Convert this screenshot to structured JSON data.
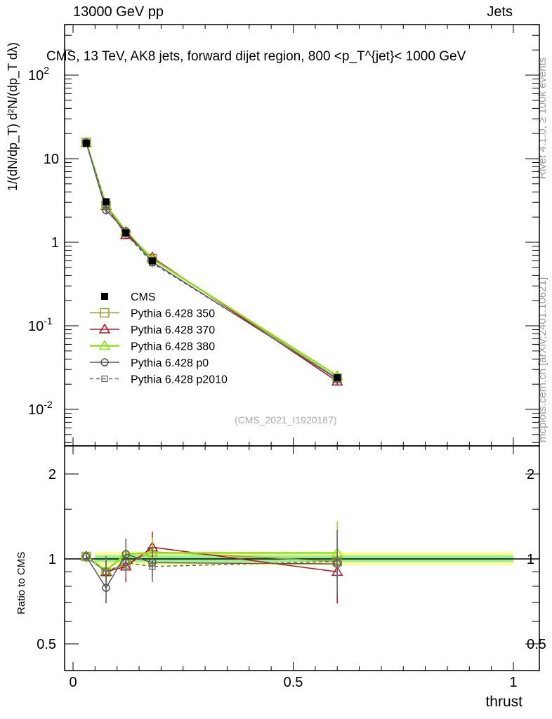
{
  "header": {
    "left": "13000 GeV pp",
    "right": "Jets"
  },
  "side_labels": {
    "rivet": "Rivet 4.1.0, ≥ 100k events",
    "mcplots": "mcplots.cern.ch [arXiv:2401.10621]"
  },
  "chart_data": {
    "type": "line",
    "title": "CMS, 13 TeV, AK8 jets, forward dijet region, 800 <p_T^{jet}< 1000 GeV",
    "watermark": "(CMS_2021_I1920187)",
    "xlabel": "thrust",
    "ylabel": "1/(dN/dp_T) d²N/(dp_T dλ)",
    "ratio_ylabel": "Ratio to CMS",
    "xlim": [
      -0.02,
      1.05
    ],
    "ylim": [
      0.004,
      400
    ],
    "ratio_ylim": [
      0.4,
      2.4
    ],
    "x_ticks": [
      "0",
      "0.5",
      "1"
    ],
    "y_ticks": [
      "10^-2",
      "10^-1",
      "1",
      "10",
      "10^2"
    ],
    "ratio_ticks": [
      "0.5",
      "1",
      "2"
    ],
    "x": [
      0.03,
      0.075,
      0.12,
      0.18,
      0.6
    ],
    "cms": [
      15.3,
      3.05,
      1.3,
      0.6,
      0.024
    ],
    "legend_position": "middle-left",
    "series": [
      {
        "name": "Pythia 6.428 350",
        "color": "#9b9b2d",
        "marker": "square",
        "dash": false,
        "ratio": [
          1.02,
          0.9,
          0.96,
          1.06,
          0.98
        ]
      },
      {
        "name": "Pythia 6.428 370",
        "color": "#b0122a",
        "marker": "triangle",
        "dash": false,
        "ratio": [
          1.02,
          0.9,
          0.94,
          1.1,
          0.9
        ]
      },
      {
        "name": "Pythia 6.428 380",
        "color": "#8fe01a",
        "marker": "triangle",
        "dash": false,
        "ratio": [
          1.02,
          0.91,
          1.04,
          1.05,
          1.05
        ]
      },
      {
        "name": "Pythia 6.428 p0",
        "color": "#555555",
        "marker": "circle",
        "dash": false,
        "ratio": [
          1.02,
          0.79,
          1.04,
          0.97,
          0.96
        ]
      },
      {
        "name": "Pythia 6.428 p2010",
        "color": "#666666",
        "marker": "square-small",
        "dash": true,
        "ratio": [
          1.02,
          0.9,
          0.97,
          0.94,
          0.98
        ]
      }
    ],
    "cms_label": "CMS"
  }
}
